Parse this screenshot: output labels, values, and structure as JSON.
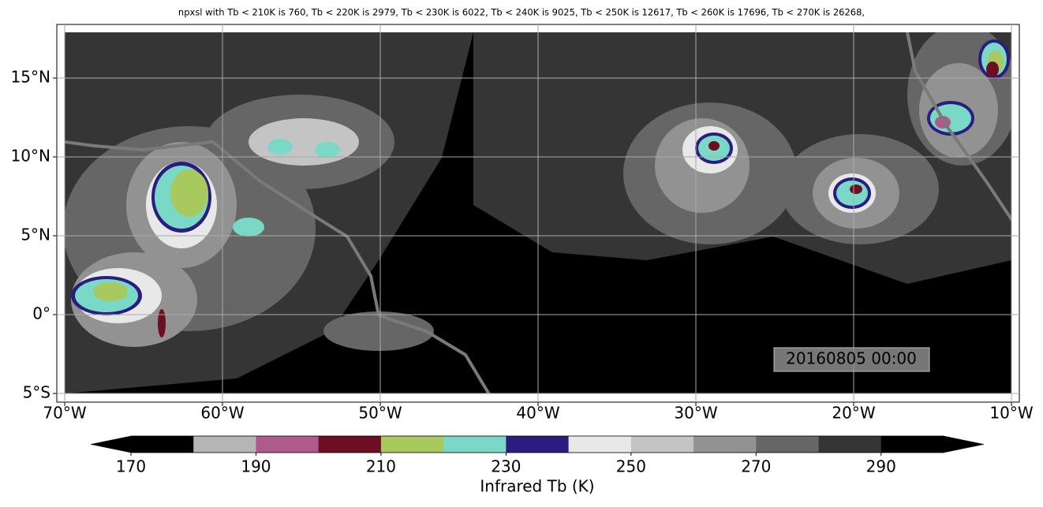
{
  "chart_data": {
    "type": "map",
    "title": "npxsl with Tb < 210K is 760,  Tb < 220K is 2979,  Tb < 230K is 6022,  Tb < 240K is 9025,  Tb < 250K is 12617,  Tb < 260K is 17696,  Tb < 270K is 26268,",
    "xlim": [
      -70.5,
      -9.5
    ],
    "ylim": [
      -5.55,
      18.4
    ],
    "xticks": [
      {
        "value": -70,
        "label": "70°W"
      },
      {
        "value": -60,
        "label": "60°W"
      },
      {
        "value": -50,
        "label": "50°W"
      },
      {
        "value": -40,
        "label": "40°W"
      },
      {
        "value": -30,
        "label": "30°W"
      },
      {
        "value": -20,
        "label": "20°W"
      },
      {
        "value": -10,
        "label": "10°W"
      }
    ],
    "yticks": [
      {
        "value": -5,
        "label": "5°S"
      },
      {
        "value": 0,
        "label": "0°"
      },
      {
        "value": 5,
        "label": "5°N"
      },
      {
        "value": 10,
        "label": "10°N"
      },
      {
        "value": 15,
        "label": "15°N"
      }
    ],
    "grid": true,
    "annotation": "20160805 00:00",
    "colorbar": {
      "label": "Infrared Tb (K)",
      "levels": [
        170,
        180,
        190,
        200,
        210,
        220,
        230,
        240,
        250,
        260,
        270,
        280,
        290,
        300
      ],
      "ticks": [
        170,
        190,
        210,
        230,
        250,
        270,
        290
      ],
      "colors": [
        "#000000",
        "#b5b5b5",
        "#ae5a8a",
        "#6e0e22",
        "#a7c95e",
        "#79d9c6",
        "#2a1d7f",
        "#e8e8e8",
        "#c4c4c4",
        "#929292",
        "#666666",
        "#353535",
        "#000000"
      ],
      "extend": "both"
    }
  }
}
